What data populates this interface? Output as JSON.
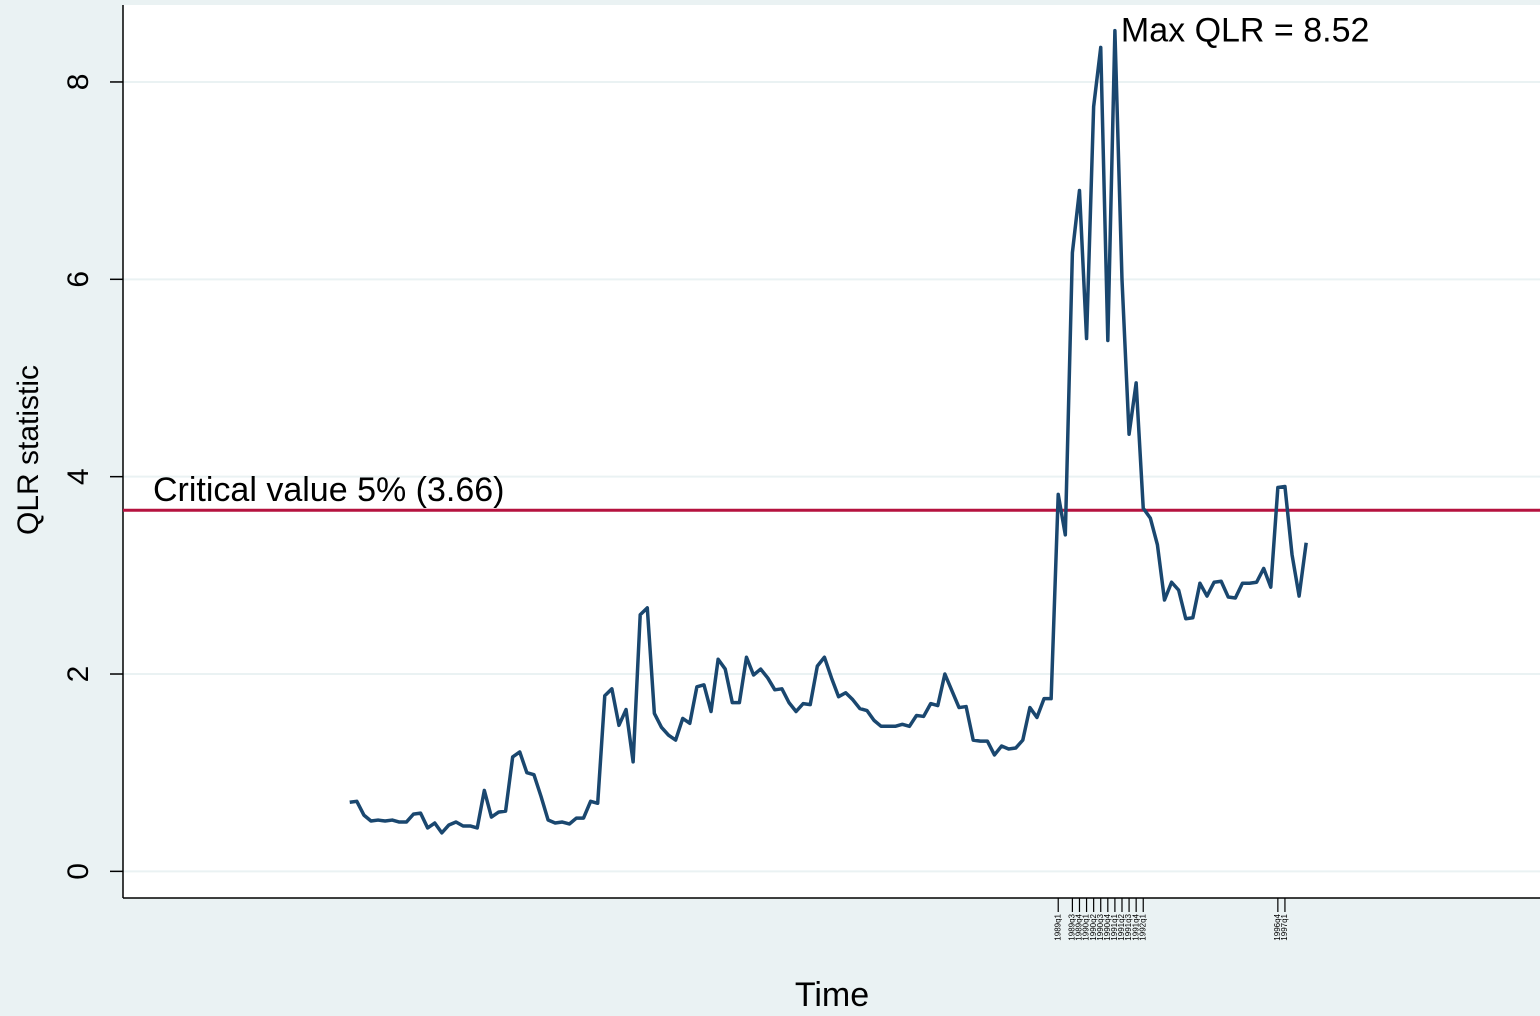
{
  "chart_data": {
    "type": "line",
    "x_axis_label": "Time",
    "y_axis_label": "QLR statistic",
    "x": [
      16,
      17,
      18,
      19,
      20,
      21,
      22,
      23,
      24,
      25,
      26,
      27,
      28,
      29,
      30,
      31,
      32,
      33,
      34,
      35,
      36,
      37,
      38,
      39,
      40,
      41,
      42,
      43,
      44,
      45,
      46,
      47,
      48,
      49,
      50,
      51,
      52,
      53,
      54,
      55,
      56,
      57,
      58,
      59,
      60,
      61,
      62,
      63,
      64,
      65,
      66,
      67,
      68,
      69,
      70,
      71,
      72,
      73,
      74,
      75,
      76,
      77,
      78,
      79,
      80,
      81,
      82,
      83,
      84,
      85,
      86,
      87,
      88,
      89,
      90,
      91,
      92,
      93,
      94,
      95,
      96,
      97,
      98,
      99,
      100,
      101,
      102,
      103,
      104,
      105,
      106,
      107,
      108,
      109,
      110,
      111,
      112,
      113,
      114,
      115,
      116,
      117,
      118,
      119,
      120,
      121,
      122,
      123,
      124,
      125,
      126,
      127,
      128,
      129,
      130,
      131,
      132,
      133,
      134,
      135,
      136,
      137,
      138,
      139,
      140,
      141,
      142,
      143,
      144,
      145,
      146,
      147,
      148,
      149,
      150,
      151
    ],
    "series": [
      {
        "color": "#1a476f",
        "values": [
          0.7,
          0.71,
          0.57,
          0.51,
          0.52,
          0.51,
          0.52,
          0.5,
          0.5,
          0.58,
          0.59,
          0.44,
          0.49,
          0.39,
          0.47,
          0.5,
          0.46,
          0.46,
          0.44,
          0.82,
          0.55,
          0.6,
          0.61,
          1.16,
          1.21,
          1.0,
          0.98,
          0.76,
          0.52,
          0.49,
          0.5,
          0.48,
          0.54,
          0.54,
          0.71,
          0.69,
          1.78,
          1.85,
          1.48,
          1.64,
          1.11,
          2.6,
          2.67,
          1.6,
          1.46,
          1.38,
          1.33,
          1.55,
          1.5,
          1.87,
          1.89,
          1.62,
          2.15,
          2.05,
          1.71,
          1.71,
          2.17,
          1.99,
          2.05,
          1.96,
          1.84,
          1.85,
          1.71,
          1.62,
          1.7,
          1.69,
          2.08,
          2.17,
          1.96,
          1.77,
          1.81,
          1.74,
          1.65,
          1.63,
          1.53,
          1.47,
          1.47,
          1.47,
          1.49,
          1.47,
          1.58,
          1.57,
          1.7,
          1.68,
          2.0,
          1.83,
          1.66,
          1.67,
          1.33,
          1.32,
          1.32,
          1.18,
          1.27,
          1.24,
          1.25,
          1.33,
          1.66,
          1.56,
          1.75,
          1.75,
          3.82,
          3.41,
          6.27,
          6.9,
          5.4,
          7.75,
          8.35,
          5.38,
          8.52,
          6.0,
          4.43,
          4.95,
          3.68,
          3.58,
          3.31,
          2.75,
          2.93,
          2.85,
          2.56,
          2.57,
          2.92,
          2.79,
          2.93,
          2.94,
          2.78,
          2.77,
          2.92,
          2.92,
          2.93,
          3.07,
          2.88,
          3.89,
          3.9,
          3.21,
          2.79,
          3.33
        ]
      }
    ],
    "xlim": [
      -16,
      184
    ],
    "xticks": [
      {
        "value": 116,
        "label": "1989q1"
      },
      {
        "value": 118,
        "label": "1989q3"
      },
      {
        "value": 119,
        "label": "1989q4"
      },
      {
        "value": 120,
        "label": "1990q1"
      },
      {
        "value": 121,
        "label": "1990q2"
      },
      {
        "value": 122,
        "label": "1990q3"
      },
      {
        "value": 123,
        "label": "1990q4"
      },
      {
        "value": 124,
        "label": "1991q1"
      },
      {
        "value": 125,
        "label": "1991q2"
      },
      {
        "value": 126,
        "label": "1991q3"
      },
      {
        "value": 127,
        "label": "1991q4"
      },
      {
        "value": 128,
        "label": "1992q1"
      },
      {
        "value": 147,
        "label": "1996q4"
      },
      {
        "value": 148,
        "label": "1997q1"
      }
    ],
    "ylim": [
      -0.27,
      8.78
    ],
    "yticks": [
      0,
      2,
      4,
      6,
      8
    ],
    "grid": true,
    "max_annotation": "Max QLR = 8.52",
    "reference_line": {
      "value": 3.66,
      "label": "Critical value 5% (3.66)",
      "color": "#b5123f"
    }
  }
}
